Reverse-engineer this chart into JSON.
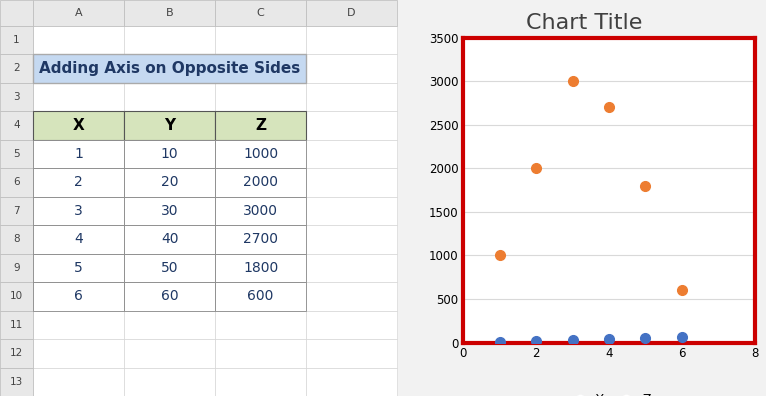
{
  "title": "Chart Title",
  "x": [
    1,
    2,
    3,
    4,
    5,
    6
  ],
  "y": [
    10,
    20,
    30,
    40,
    50,
    60
  ],
  "z": [
    1000,
    2000,
    3000,
    2700,
    1800,
    600
  ],
  "y_color": "#4472C4",
  "z_color": "#ED7D31",
  "xlim": [
    0,
    8
  ],
  "ylim": [
    0,
    3500
  ],
  "x_ticks": [
    0,
    2,
    4,
    6,
    8
  ],
  "y_ticks": [
    0,
    500,
    1000,
    1500,
    2000,
    2500,
    3000,
    3500
  ],
  "title_fontsize": 14,
  "marker_size": 7,
  "border_color": "#CC0000",
  "border_linewidth": 3,
  "chart_bg": "#FFFFFF",
  "grid_color": "#D9D9D9",
  "legend_labels": [
    "Y",
    "Z"
  ],
  "spreadsheet_title": "Adding Axis on Opposite Sides",
  "table_headers": [
    "X",
    "Y",
    "Z"
  ],
  "table_data": [
    [
      1,
      10,
      1000
    ],
    [
      2,
      20,
      2000
    ],
    [
      3,
      30,
      3000
    ],
    [
      4,
      40,
      2700
    ],
    [
      5,
      50,
      1800
    ],
    [
      6,
      60,
      600
    ]
  ],
  "header_bg": "#D6E4BC",
  "spreadsheet_title_bg": "#C5D9F1",
  "cell_bg": "#FFFFFF",
  "fig_bg": "#F2F2F2",
  "excel_bg": "#FFFFFF",
  "col_header_color": "#000000",
  "row_header_color": "#000000",
  "data_color": "#000000",
  "spreadsheet_title_fontsize": 11,
  "table_fontsize": 10,
  "col_header_fontsize": 11,
  "excel_col_header_bg": "#E8E8E8",
  "excel_row_header_bg": "#E8E8E8",
  "chart_title_fontsize": 16
}
